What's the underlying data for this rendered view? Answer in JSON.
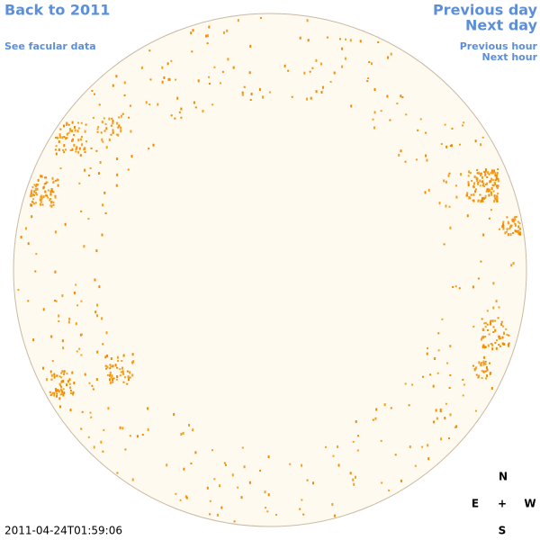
{
  "navigation": {
    "back": "Back to 2011",
    "facular_data": "See facular data",
    "previous_day": "Previous day",
    "next_day": "Next day",
    "previous_hour": "Previous hour",
    "next_hour": "Next hour"
  },
  "compass": {
    "north": "N",
    "east": "E",
    "center": "+",
    "west": "W",
    "south": "S"
  },
  "timestamp": "2011-04-24T01:59:06"
}
